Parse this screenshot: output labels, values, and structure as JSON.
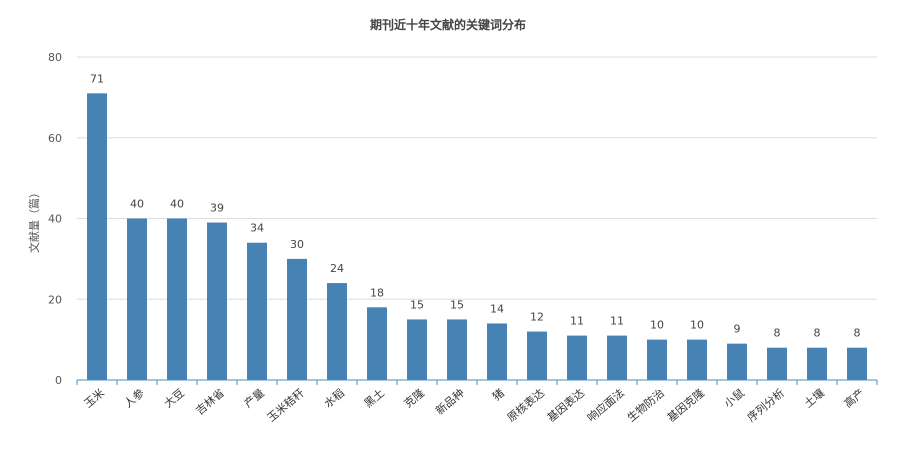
{
  "chart_data": {
    "type": "bar",
    "title": "期刊近十年文献的关键词分布",
    "xlabel": "",
    "ylabel": "文献量（篇）",
    "ylim": [
      0,
      80
    ],
    "yticks": [
      0,
      20,
      40,
      60,
      80
    ],
    "grid": true,
    "color": "#4682b4",
    "categories": [
      "玉米",
      "人参",
      "大豆",
      "吉林省",
      "产量",
      "玉米秸秆",
      "水稻",
      "黑土",
      "克隆",
      "新品种",
      "猪",
      "原核表达",
      "基因表达",
      "响应面法",
      "生物防治",
      "基因克隆",
      "小鼠",
      "序列分析",
      "土壤",
      "高产"
    ],
    "values": [
      71,
      40,
      40,
      39,
      34,
      30,
      24,
      18,
      15,
      15,
      14,
      12,
      11,
      11,
      10,
      10,
      9,
      8,
      8,
      8
    ]
  }
}
